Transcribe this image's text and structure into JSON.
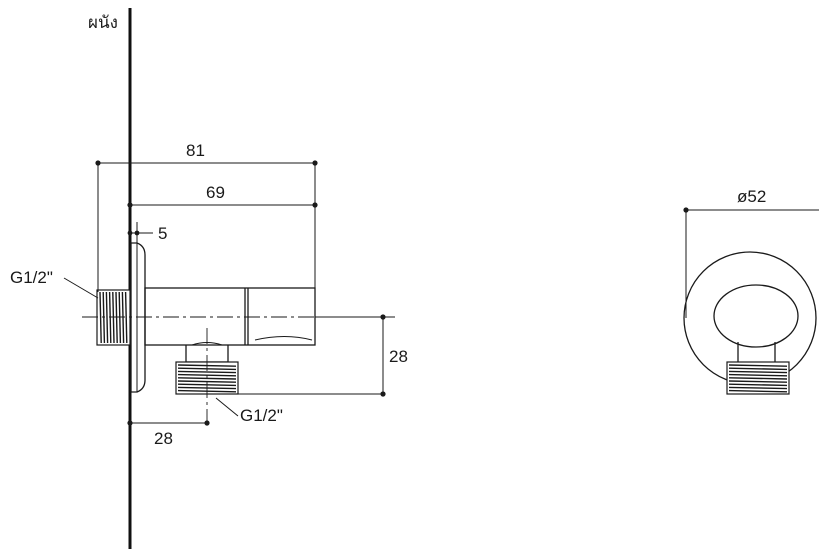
{
  "labels": {
    "wall": "ผนัง",
    "dim_total_length": "81",
    "dim_body_length": "69",
    "dim_flange_thickness": "5",
    "inlet_thread": "G1/2\"",
    "outlet_thread": "G1/2\"",
    "dim_outlet_height": "28",
    "dim_outlet_offset": "28",
    "dim_flange_diameter": "ø52"
  },
  "colors": {
    "line": "#1a1a1a",
    "background": "#ffffff"
  }
}
